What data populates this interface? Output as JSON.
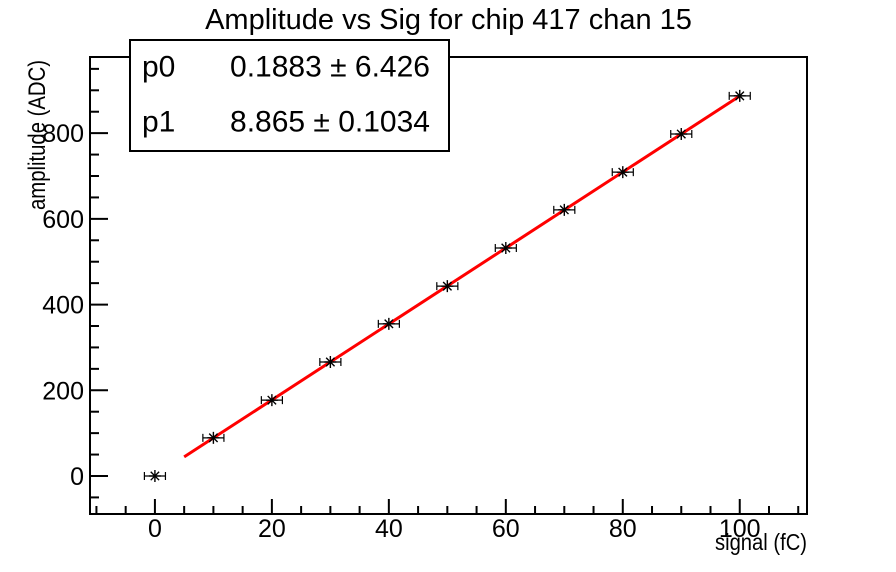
{
  "title": "Amplitude vs Sig for chip 417 chan 15",
  "stats_box": {
    "rows": [
      {
        "name": "p0",
        "value": "0.1883 ± 6.426"
      },
      {
        "name": "p1",
        "value": "8.865 ± 0.1034"
      }
    ]
  },
  "chart_data": {
    "type": "scatter",
    "title": "Amplitude vs Sig for chip 417 chan 15",
    "xlabel": "signal (fC)",
    "ylabel": "amplitude (ADC)",
    "x": [
      0,
      10,
      20,
      30,
      40,
      50,
      60,
      70,
      80,
      90,
      100
    ],
    "y": [
      0,
      89,
      177,
      266,
      355,
      443,
      532,
      621,
      709,
      798,
      887
    ],
    "x_error": 1.8,
    "marker": "asterisk-with-x-error-bar",
    "marker_color": "#000000",
    "fit": {
      "type": "linear",
      "p0": 0.1883,
      "p0_err": 6.426,
      "p1": 8.865,
      "p1_err": 0.1034,
      "draw_range": [
        5,
        100
      ],
      "color": "#ff0000"
    },
    "xlim": [
      -11.1,
      111.5
    ],
    "ylim": [
      -88.7,
      977.7
    ],
    "xticks": [
      0,
      20,
      40,
      60,
      80,
      100
    ],
    "yticks": [
      0,
      200,
      400,
      600,
      800
    ],
    "x_minor_step": 5,
    "y_minor_step": 50,
    "grid": false,
    "legend_position": "none",
    "axis_color": "#000000",
    "background": "#ffffff"
  }
}
